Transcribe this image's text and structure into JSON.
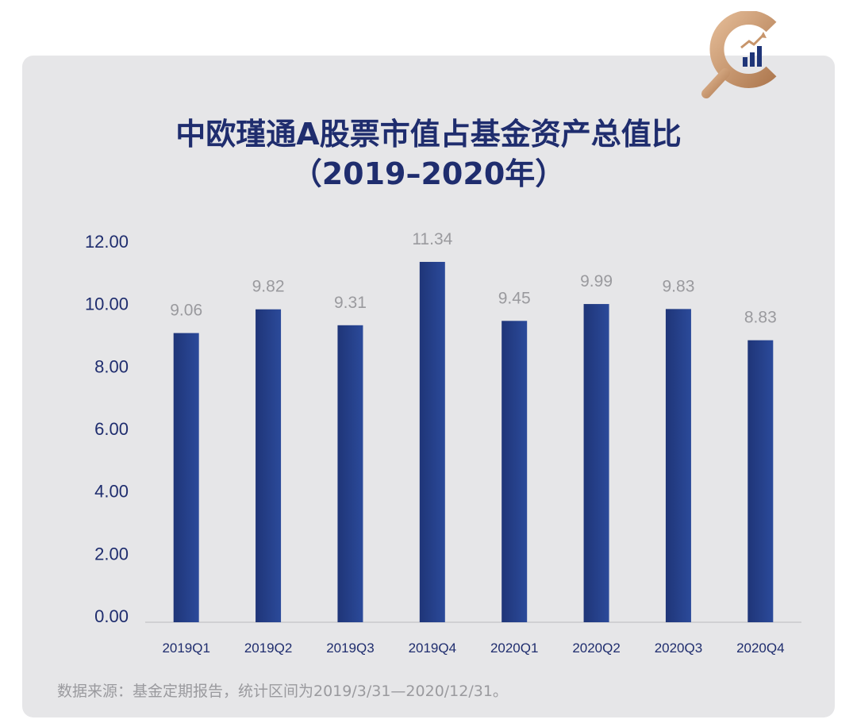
{
  "colors": {
    "bar": "#1f3578",
    "bar_light": "#2b4a9a",
    "title": "#1f2d6e",
    "value_label": "#9a9a9e",
    "axis_text": "#1f2d6e",
    "logo_gold": "#c7956b",
    "logo_blue": "#1f3578"
  },
  "logo": {
    "icon": "magnifier-chart-logo"
  },
  "header": {
    "title_line1": "中欧瑾通A股票市值占基金资产总值比",
    "title_line2": "（2019–2020年）"
  },
  "chart_data": {
    "type": "bar",
    "categories": [
      "2019Q1",
      "2019Q2",
      "2019Q3",
      "2019Q4",
      "2020Q1",
      "2020Q2",
      "2020Q3",
      "2020Q4"
    ],
    "values": [
      9.06,
      9.82,
      9.31,
      11.34,
      9.45,
      9.99,
      9.83,
      8.83
    ],
    "value_labels": [
      "9.06",
      "9.82",
      "9.31",
      "11.34",
      "9.45",
      "9.99",
      "9.83",
      "8.83"
    ],
    "y_ticks": [
      "0.00",
      "2.00",
      "4.00",
      "6.00",
      "8.00",
      "10.00",
      "12.00"
    ],
    "ylim": [
      0,
      12
    ],
    "grid": false,
    "legend": "none"
  },
  "footer": {
    "source": "数据来源：基金定期报告，统计区间为2019/3/31—2020/12/31。"
  }
}
